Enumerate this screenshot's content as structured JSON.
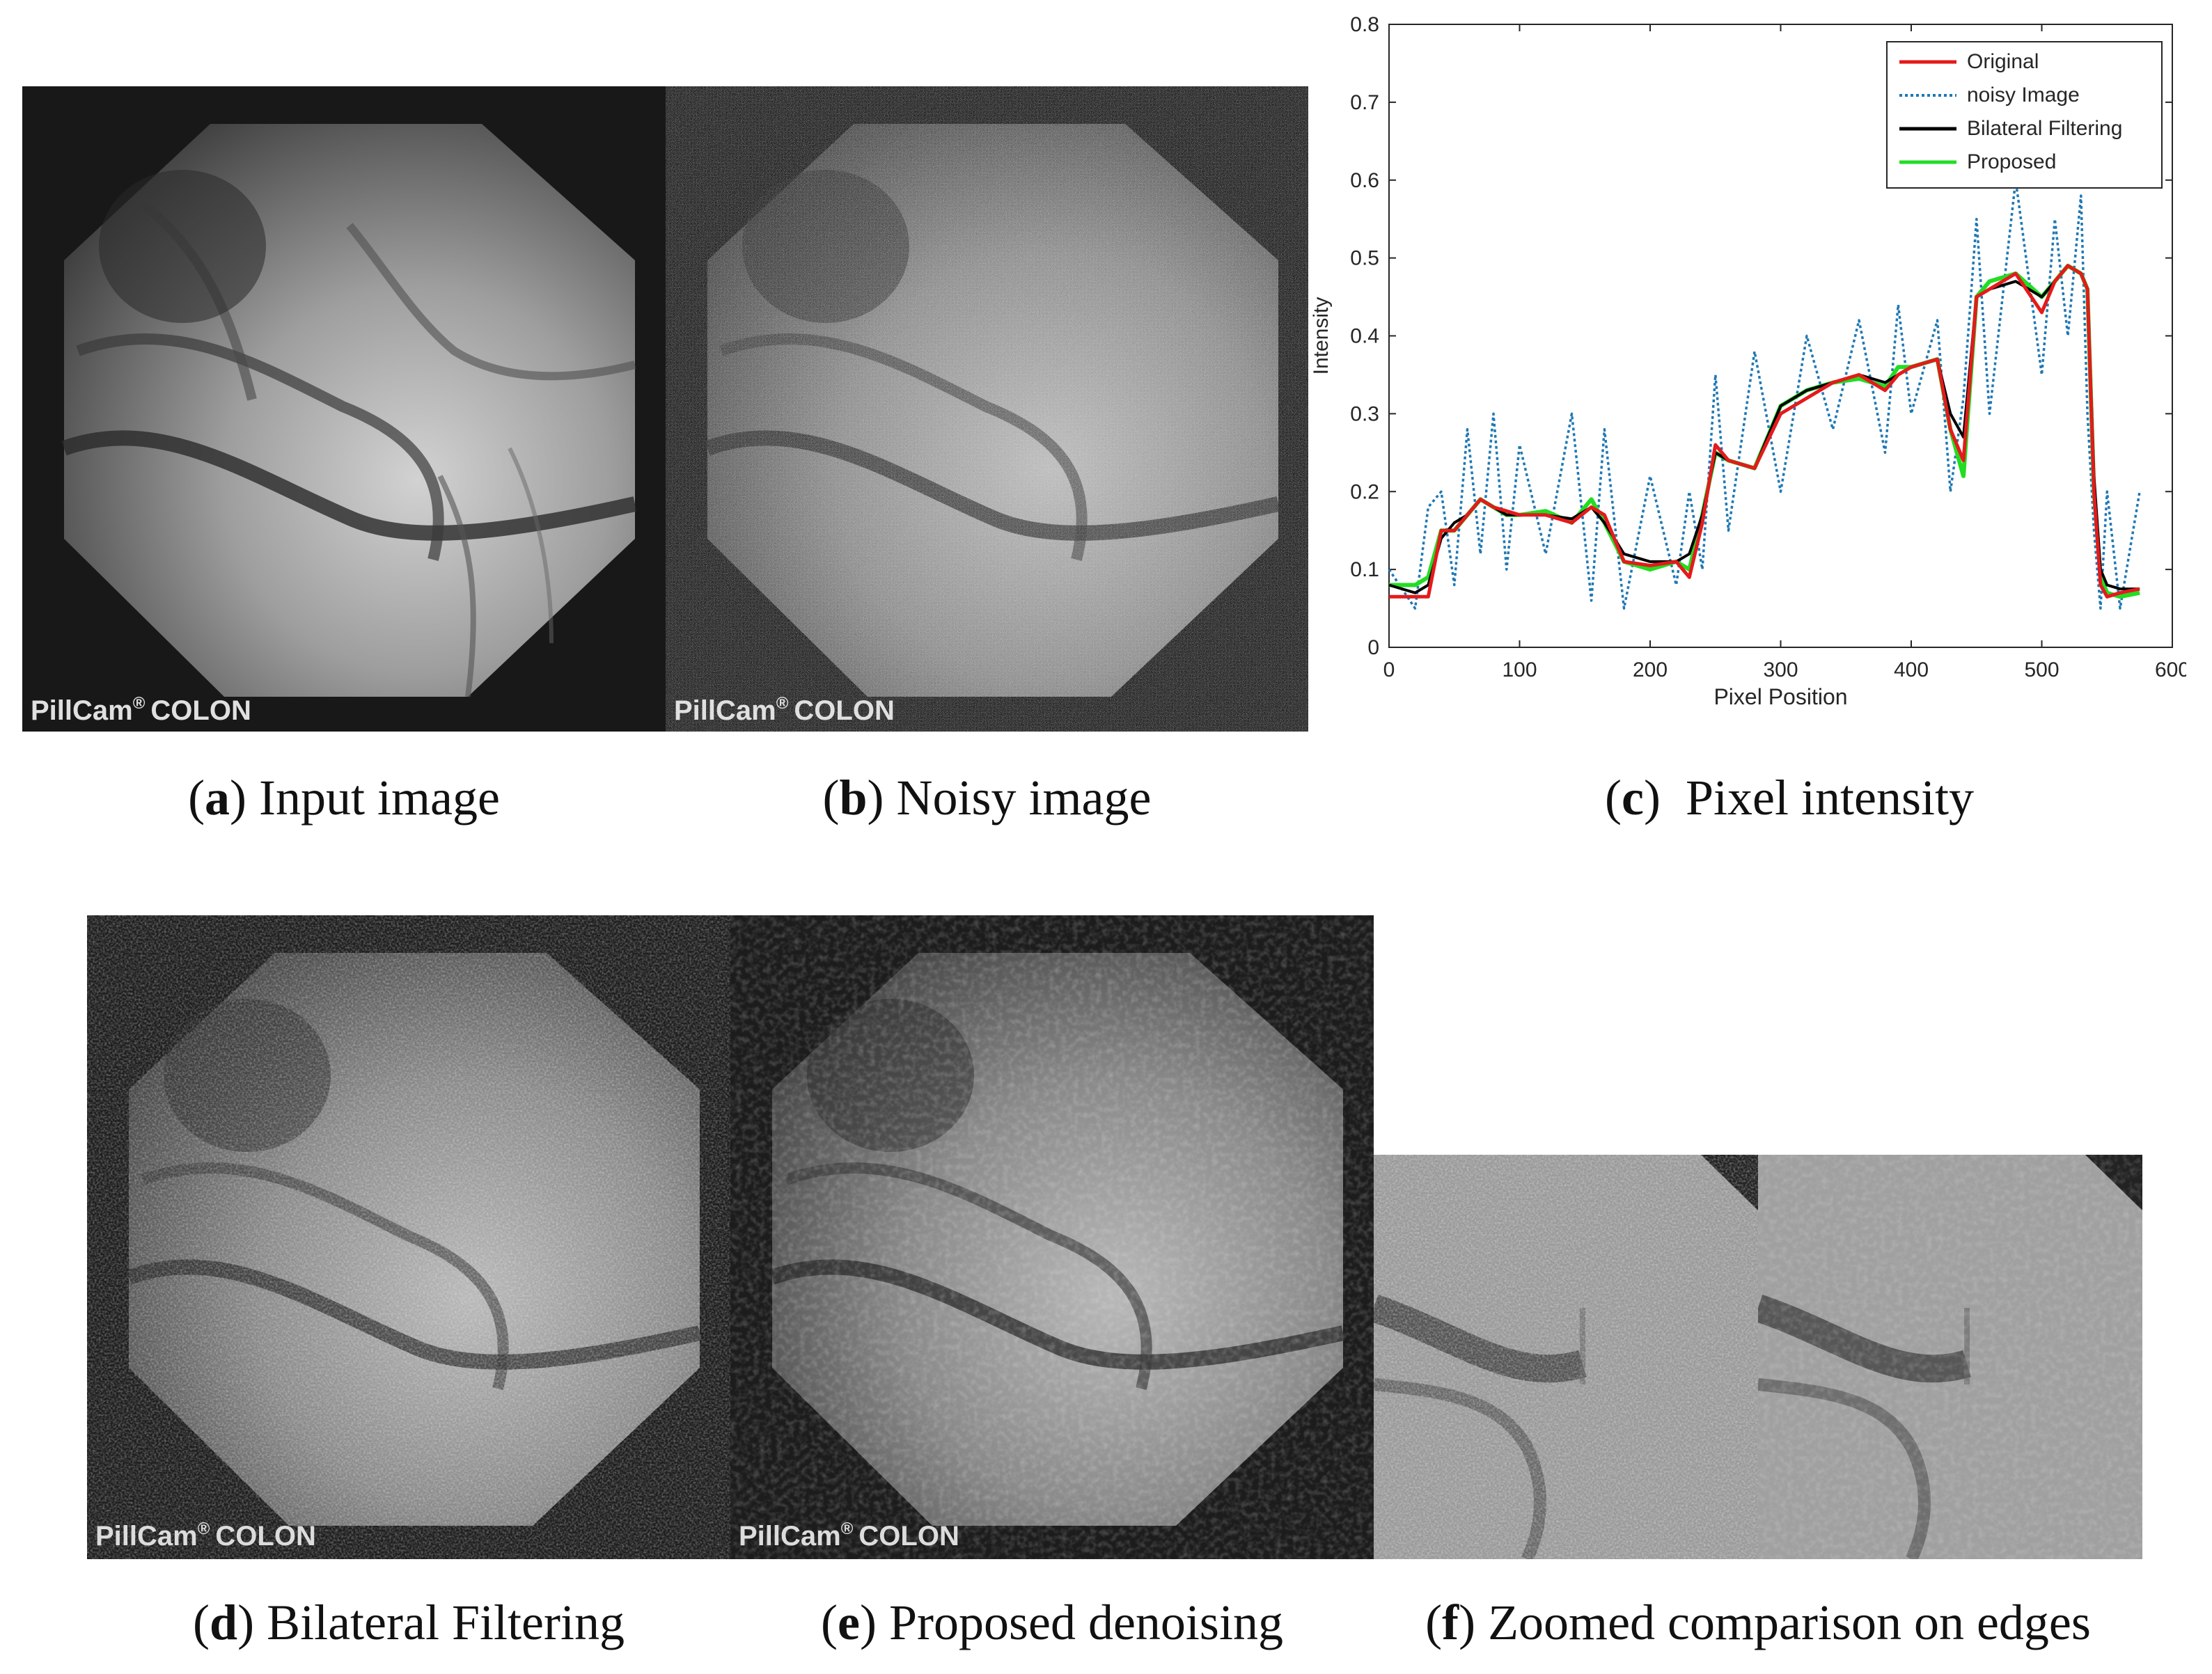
{
  "figure": {
    "captions": {
      "a": {
        "letter": "a",
        "text": "Input image"
      },
      "b": {
        "letter": "b",
        "text": "Noisy image"
      },
      "c": {
        "letter": "c",
        "text": "Pixel intensity"
      },
      "d": {
        "letter": "d",
        "text": "Bilateral Filtering"
      },
      "e": {
        "letter": "e",
        "text": "Proposed denoising"
      },
      "f": {
        "letter": "f",
        "text": "Zoomed comparison on edges"
      }
    },
    "watermark": {
      "brand": "PillCam",
      "mark": "®",
      "model": "COLON"
    }
  },
  "chart_data": {
    "type": "line",
    "title": "",
    "xlabel": "Pixel Position",
    "ylabel": "Intensity",
    "xlim": [
      0,
      600
    ],
    "ylim": [
      0,
      0.8
    ],
    "xticks": [
      "0",
      "100",
      "200",
      "300",
      "400",
      "500",
      "600"
    ],
    "yticks": [
      "0",
      "0.1",
      "0.2",
      "0.3",
      "0.4",
      "0.5",
      "0.6",
      "0.7",
      "0.8"
    ],
    "grid": false,
    "legend_position": "top-right",
    "x": [
      0,
      20,
      30,
      40,
      50,
      60,
      70,
      80,
      90,
      100,
      120,
      140,
      155,
      165,
      180,
      200,
      220,
      230,
      240,
      250,
      260,
      280,
      300,
      320,
      340,
      360,
      380,
      390,
      400,
      420,
      430,
      440,
      450,
      460,
      480,
      500,
      510,
      520,
      530,
      535,
      540,
      545,
      550,
      560,
      575
    ],
    "series": [
      {
        "name": "Original",
        "color": "#e41a1c",
        "style": "solid",
        "values": [
          0.065,
          0.065,
          0.065,
          0.15,
          0.15,
          0.17,
          0.19,
          0.18,
          0.175,
          0.17,
          0.17,
          0.16,
          0.18,
          0.17,
          0.11,
          0.105,
          0.11,
          0.09,
          0.16,
          0.26,
          0.24,
          0.23,
          0.3,
          0.32,
          0.34,
          0.35,
          0.33,
          0.35,
          0.36,
          0.37,
          0.28,
          0.24,
          0.45,
          0.46,
          0.48,
          0.43,
          0.47,
          0.49,
          0.48,
          0.46,
          0.2,
          0.08,
          0.065,
          0.07,
          0.075
        ]
      },
      {
        "name": "noisy Image",
        "color": "#1f78b4",
        "style": "dotted",
        "values": [
          0.1,
          0.05,
          0.18,
          0.2,
          0.08,
          0.28,
          0.12,
          0.3,
          0.1,
          0.26,
          0.12,
          0.3,
          0.06,
          0.28,
          0.05,
          0.22,
          0.08,
          0.2,
          0.1,
          0.35,
          0.15,
          0.38,
          0.2,
          0.4,
          0.28,
          0.42,
          0.25,
          0.44,
          0.3,
          0.42,
          0.2,
          0.32,
          0.55,
          0.3,
          0.6,
          0.35,
          0.55,
          0.4,
          0.58,
          0.3,
          0.15,
          0.05,
          0.2,
          0.05,
          0.2
        ]
      },
      {
        "name": "Bilateral Filtering",
        "color": "#000000",
        "style": "solid",
        "values": [
          0.08,
          0.07,
          0.08,
          0.14,
          0.16,
          0.17,
          0.19,
          0.18,
          0.17,
          0.17,
          0.17,
          0.165,
          0.18,
          0.16,
          0.12,
          0.11,
          0.11,
          0.12,
          0.17,
          0.25,
          0.24,
          0.23,
          0.31,
          0.33,
          0.34,
          0.35,
          0.34,
          0.35,
          0.36,
          0.37,
          0.3,
          0.27,
          0.45,
          0.46,
          0.47,
          0.45,
          0.47,
          0.49,
          0.48,
          0.46,
          0.22,
          0.1,
          0.08,
          0.075,
          0.075
        ]
      },
      {
        "name": "Proposed",
        "color": "#22dd22",
        "style": "solid",
        "values": [
          0.08,
          0.08,
          0.09,
          0.15,
          0.15,
          0.17,
          0.19,
          0.18,
          0.17,
          0.17,
          0.175,
          0.16,
          0.19,
          0.16,
          0.11,
          0.1,
          0.11,
          0.1,
          0.17,
          0.25,
          0.24,
          0.23,
          0.31,
          0.33,
          0.34,
          0.345,
          0.335,
          0.36,
          0.36,
          0.37,
          0.28,
          0.22,
          0.45,
          0.47,
          0.48,
          0.45,
          0.47,
          0.49,
          0.48,
          0.46,
          0.2,
          0.09,
          0.07,
          0.065,
          0.07
        ]
      }
    ]
  }
}
